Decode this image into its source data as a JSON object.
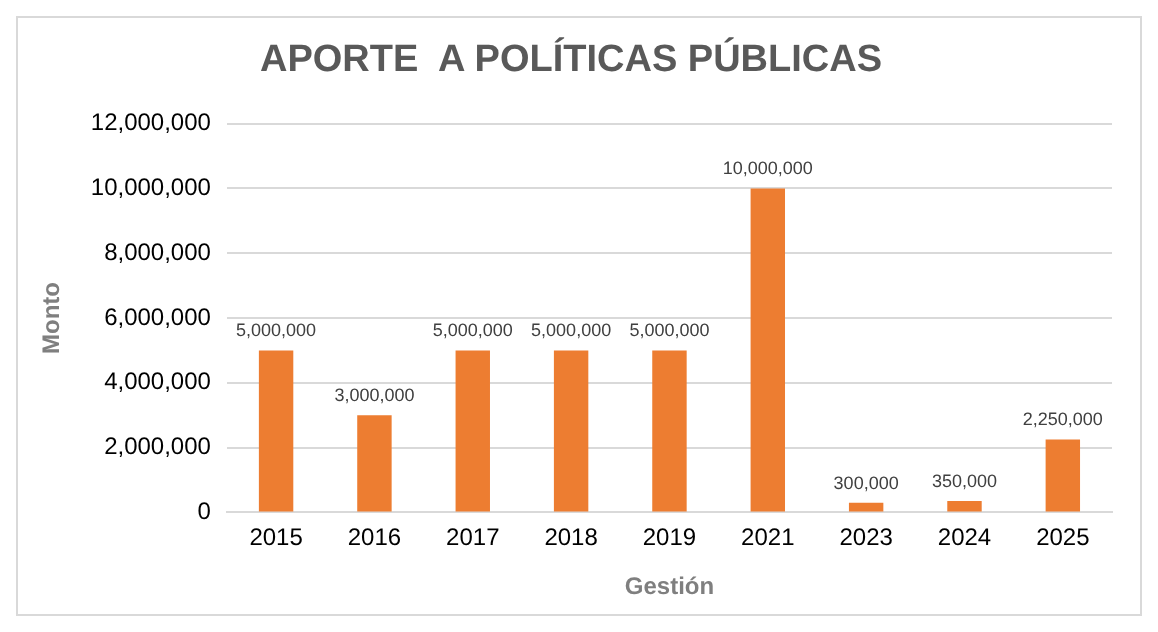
{
  "chart_data": {
    "type": "bar",
    "title": "APORTE  A POLÍTICAS PÚBLICAS",
    "xlabel": "Gestión",
    "ylabel": "Monto",
    "categories": [
      "2015",
      "2016",
      "2017",
      "2018",
      "2019",
      "2021",
      "2023",
      "2024",
      "2025"
    ],
    "values": [
      5000000,
      3000000,
      5000000,
      5000000,
      5000000,
      10000000,
      300000,
      350000,
      2250000
    ],
    "value_labels": [
      "5,000,000",
      "3,000,000",
      "5,000,000",
      "5,000,000",
      "5,000,000",
      "10,000,000",
      "300,000",
      "350,000",
      "2,250,000"
    ],
    "color": "#ed7d31",
    "ylim": [
      0,
      12000000
    ],
    "yticks": [
      0,
      {
        "value": 2000000,
        "label": "2,000,000"
      },
      {
        "value": 4000000,
        "label": "4,000,000"
      },
      {
        "value": 6000000,
        "label": "6,000,000"
      },
      {
        "value": 8000000,
        "label": "8,000,000"
      },
      {
        "value": 10000000,
        "label": "10,000,000"
      },
      {
        "value": 12000000,
        "label": "12,000,000"
      }
    ],
    "grid": "y",
    "legend": false
  }
}
